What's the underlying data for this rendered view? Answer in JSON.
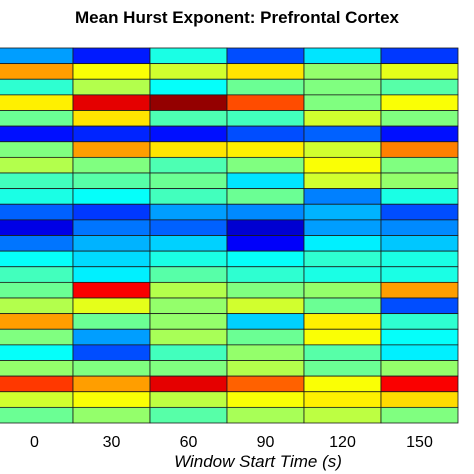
{
  "chart_data": {
    "type": "heatmap",
    "title": "Mean Hurst Exponent: Prefrontal Cortex",
    "xlabel": "Window Start Time (s)",
    "ylabel": "",
    "x_categories": [
      "0",
      "30",
      "60",
      "90",
      "120",
      "150"
    ],
    "y_row_count": 24,
    "colormap": "jet",
    "value_range": [
      0,
      1
    ],
    "values": [
      [
        0.28,
        0.15,
        0.4,
        0.2,
        0.35,
        0.18
      ],
      [
        0.72,
        0.62,
        0.58,
        0.65,
        0.52,
        0.6
      ],
      [
        0.42,
        0.55,
        0.38,
        0.48,
        0.5,
        0.46
      ],
      [
        0.64,
        0.9,
        0.98,
        0.8,
        0.5,
        0.62
      ],
      [
        0.48,
        0.65,
        0.45,
        0.44,
        0.58,
        0.5
      ],
      [
        0.14,
        0.16,
        0.14,
        0.2,
        0.22,
        0.14
      ],
      [
        0.5,
        0.72,
        0.65,
        0.64,
        0.58,
        0.75
      ],
      [
        0.55,
        0.5,
        0.45,
        0.5,
        0.62,
        0.5
      ],
      [
        0.44,
        0.46,
        0.48,
        0.35,
        0.58,
        0.52
      ],
      [
        0.4,
        0.38,
        0.44,
        0.48,
        0.25,
        0.4
      ],
      [
        0.22,
        0.18,
        0.28,
        0.26,
        0.3,
        0.2
      ],
      [
        0.1,
        0.24,
        0.22,
        0.08,
        0.28,
        0.26
      ],
      [
        0.24,
        0.3,
        0.33,
        0.12,
        0.36,
        0.32
      ],
      [
        0.38,
        0.34,
        0.4,
        0.38,
        0.42,
        0.4
      ],
      [
        0.44,
        0.36,
        0.46,
        0.42,
        0.4,
        0.4
      ],
      [
        0.48,
        0.88,
        0.55,
        0.5,
        0.52,
        0.72
      ],
      [
        0.55,
        0.6,
        0.52,
        0.58,
        0.48,
        0.2
      ],
      [
        0.72,
        0.48,
        0.52,
        0.33,
        0.64,
        0.42
      ],
      [
        0.5,
        0.28,
        0.54,
        0.48,
        0.62,
        0.38
      ],
      [
        0.38,
        0.2,
        0.44,
        0.52,
        0.46,
        0.36
      ],
      [
        0.52,
        0.5,
        0.5,
        0.55,
        0.48,
        0.52
      ],
      [
        0.82,
        0.72,
        0.9,
        0.78,
        0.62,
        0.88
      ],
      [
        0.58,
        0.62,
        0.56,
        0.62,
        0.64,
        0.66
      ],
      [
        0.48,
        0.52,
        0.46,
        0.54,
        0.56,
        0.5
      ]
    ]
  }
}
